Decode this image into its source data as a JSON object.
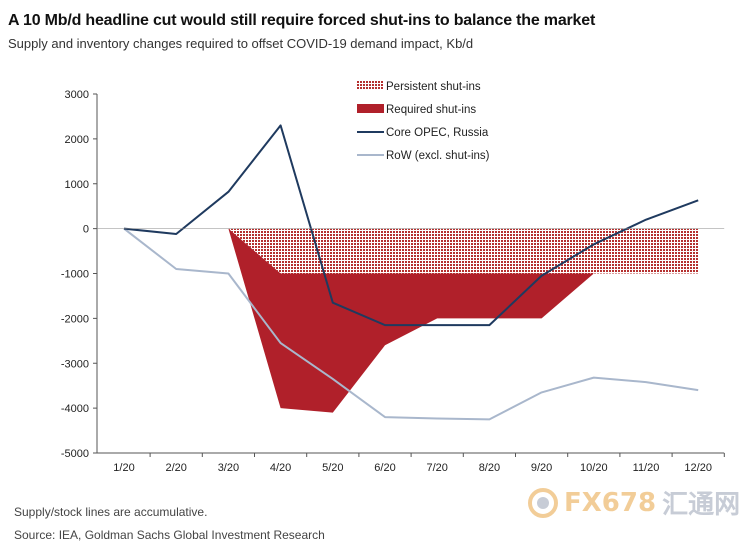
{
  "title": "A 10 Mb/d headline cut would still require forced shut-ins to balance the market",
  "subtitle": "Supply and inventory changes required to offset COVID-19 demand impact, Kb/d",
  "footer_note": "Supply/stock lines are accumulative.",
  "source": "Source: IEA, Goldman Sachs Global Investment Research",
  "watermark": {
    "brand": "FX678",
    "brand_cn": "汇通网"
  },
  "colors": {
    "persistent": "#b5302f",
    "required": "#b0202a",
    "core_opec": "#1f3a5f",
    "row": "#a9b7cc",
    "axis": "#555555"
  },
  "chart_data": {
    "type": "area",
    "categories": [
      "1/20",
      "2/20",
      "3/20",
      "4/20",
      "5/20",
      "6/20",
      "7/20",
      "8/20",
      "9/20",
      "10/20",
      "11/20",
      "12/20"
    ],
    "ylim": [
      -5000,
      3000
    ],
    "yticks": [
      3000,
      2000,
      1000,
      0,
      -1000,
      -2000,
      -3000,
      -4000,
      -5000
    ],
    "legend_position": "top-right",
    "series": [
      {
        "name": "Persistent shut-ins",
        "kind": "hatched-area",
        "values": [
          null,
          null,
          0,
          -1000,
          -1000,
          -1000,
          -1000,
          -1000,
          -1000,
          -1000,
          -1000,
          -1000
        ]
      },
      {
        "name": "Required shut-ins",
        "kind": "area-band",
        "upper": [
          null,
          null,
          0,
          -1000,
          -1000,
          -1000,
          -1000,
          -1000,
          -1000,
          -1000,
          null,
          null
        ],
        "lower": [
          null,
          null,
          0,
          -4000,
          -4100,
          -2600,
          -2000,
          -2000,
          -2000,
          -1000,
          null,
          null
        ]
      },
      {
        "name": "Core OPEC, Russia",
        "kind": "line",
        "values": [
          0,
          -120,
          820,
          2300,
          -1650,
          -2150,
          -2150,
          -2150,
          -1050,
          -350,
          200,
          630
        ]
      },
      {
        "name": "RoW (excl. shut-ins)",
        "kind": "line",
        "values": [
          0,
          -900,
          -1000,
          -2550,
          -3350,
          -4200,
          -4230,
          -4250,
          -3650,
          -3320,
          -3420,
          -3600
        ]
      }
    ]
  }
}
